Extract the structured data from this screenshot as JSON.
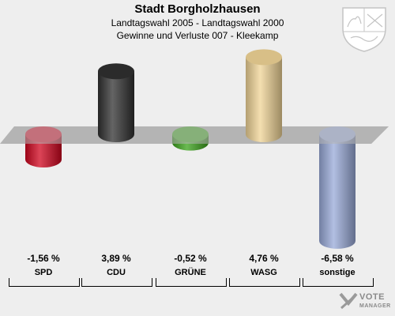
{
  "header": {
    "title": "Stadt Borgholzhausen",
    "subtitle": "Landtagswahl 2005 - Landtagswahl 2000",
    "subtitle2": "Gewinne und Verluste 007 - Kleekamp"
  },
  "chart_data": {
    "type": "bar",
    "categories": [
      "SPD",
      "CDU",
      "GRÜNE",
      "WASG",
      "sonstige"
    ],
    "values": [
      -1.56,
      3.89,
      -0.52,
      4.76,
      -6.58
    ],
    "value_labels": [
      "-1,56 %",
      "3,89 %",
      "-0,52 %",
      "4,76 %",
      "-6,58 %"
    ],
    "colors": [
      "#d0051f",
      "#303030",
      "#3aa31a",
      "#f0d496",
      "#98a9d8"
    ],
    "ylim": [
      -6.58,
      4.76
    ],
    "grid": false,
    "legend": "none"
  },
  "branding": {
    "logo_line1": "VOTE",
    "logo_line2": "MANAGER",
    "crest": "coat-of-arms-icon"
  }
}
